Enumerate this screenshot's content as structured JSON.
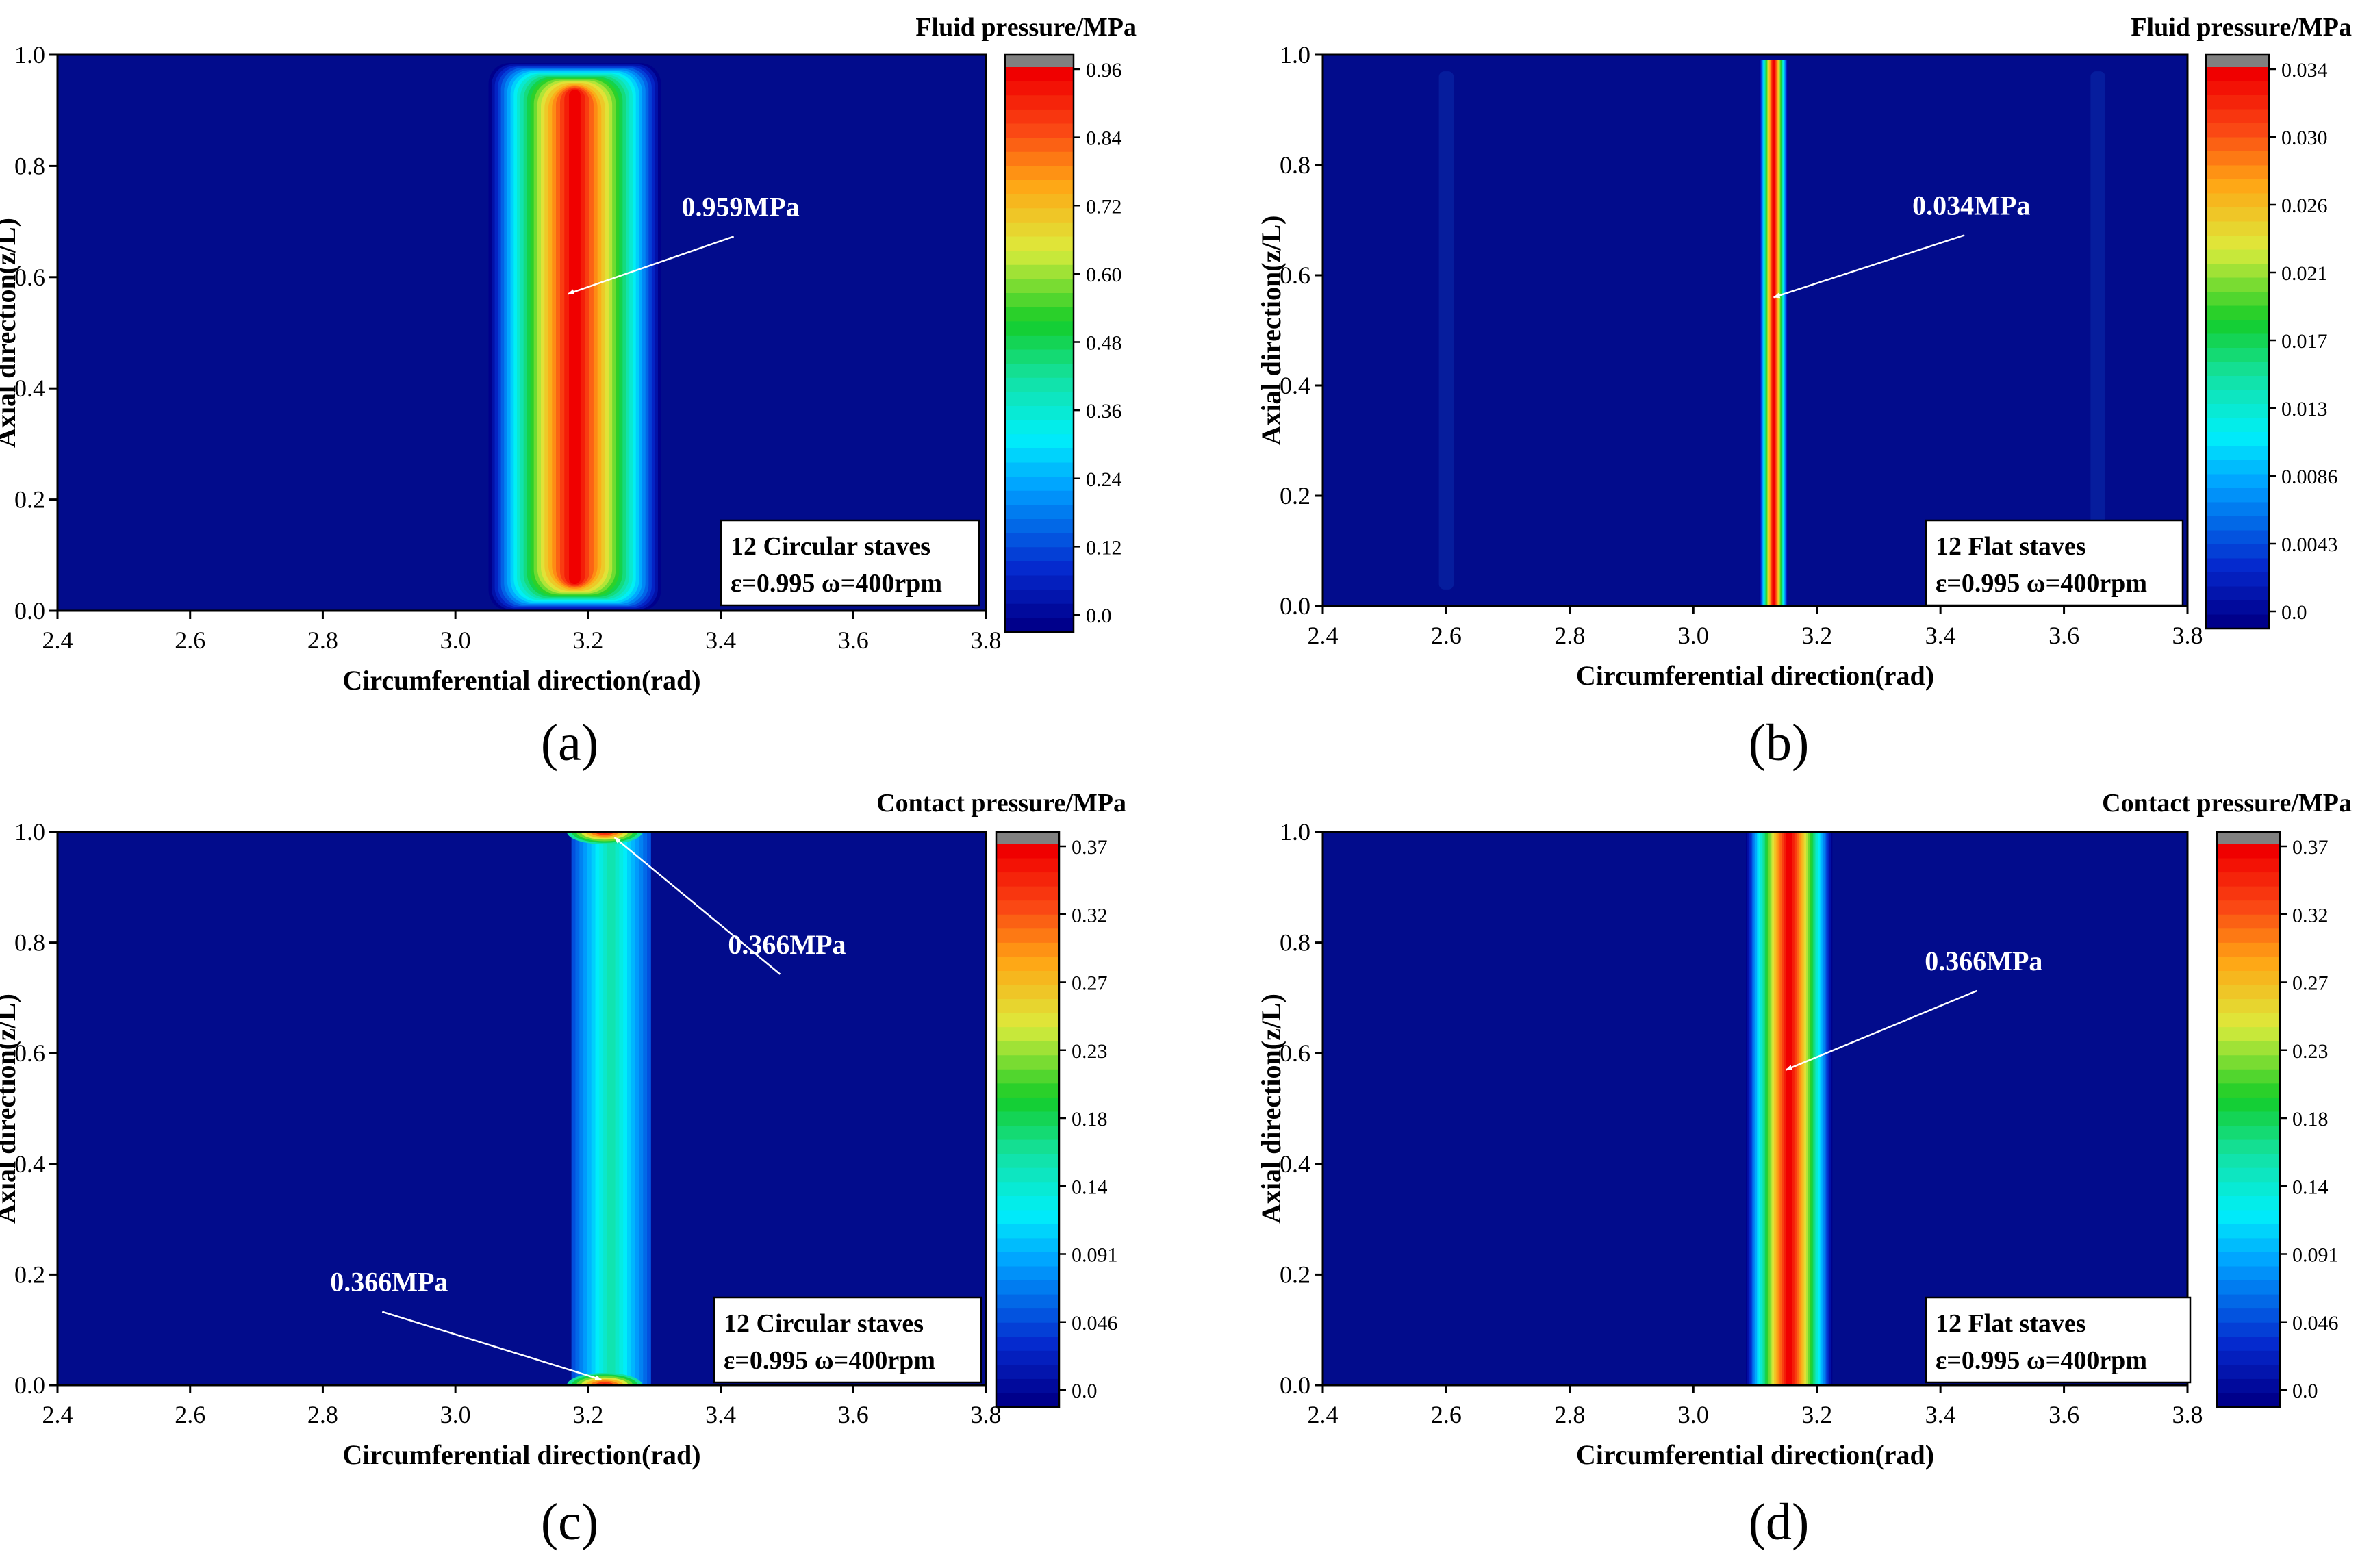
{
  "chart_data": [
    {
      "type": "heatmap",
      "panel_label": "(a)",
      "title": "Fluid pressure/MPa",
      "xlabel": "Circumferential direction(rad)",
      "ylabel": "Axial direction(z/L)",
      "xlim": [
        2.4,
        3.8
      ],
      "ylim": [
        0.0,
        1.0
      ],
      "xticks": [
        "2.4",
        "2.6",
        "2.8",
        "3.0",
        "3.2",
        "3.4",
        "3.6",
        "3.8"
      ],
      "yticks": [
        "0.0",
        "0.2",
        "0.4",
        "0.6",
        "0.8",
        "1.0"
      ],
      "colorbar": {
        "min": 0.0,
        "max": 0.96,
        "ticks": [
          "0.0",
          "0.12",
          "0.24",
          "0.36",
          "0.48",
          "0.60",
          "0.72",
          "0.84",
          "0.96"
        ]
      },
      "field": {
        "shape": "band",
        "center": 3.18,
        "half_width": 0.13,
        "z_start": 0.0,
        "z_end": 0.985,
        "round_ends": true,
        "peak": 0.959
      },
      "faint_bands": [],
      "legend": {
        "line1": "12 Circular staves",
        "line2": "ε=0.995 ω=400rpm"
      },
      "annotations": [
        {
          "text": "0.959MPa",
          "point_x": 3.17,
          "point_y": 0.57,
          "text_x": 3.43,
          "text_y": 0.71
        }
      ]
    },
    {
      "type": "heatmap",
      "panel_label": "(b)",
      "title": "Fluid pressure/MPa",
      "xlabel": "Circumferential direction(rad)",
      "ylabel": "Axial direction(z/L)",
      "xlim": [
        2.4,
        3.8
      ],
      "ylim": [
        0.0,
        1.0
      ],
      "xticks": [
        "2.4",
        "2.6",
        "2.8",
        "3.0",
        "3.2",
        "3.4",
        "3.6",
        "3.8"
      ],
      "yticks": [
        "0.0",
        "0.2",
        "0.4",
        "0.6",
        "0.8",
        "1.0"
      ],
      "colorbar": {
        "min": 0.0,
        "max": 0.034,
        "ticks": [
          "0.0",
          "0.0043",
          "0.0086",
          "0.013",
          "0.017",
          "0.021",
          "0.026",
          "0.030",
          "0.034"
        ]
      },
      "field": {
        "shape": "band",
        "center": 3.13,
        "half_width": 0.023,
        "z_start": 0.0,
        "z_end": 0.99,
        "round_ends": false,
        "peak": 0.034
      },
      "faint_bands": [
        {
          "center": 2.6,
          "half_width": 0.012
        },
        {
          "center": 3.655,
          "half_width": 0.012
        }
      ],
      "legend": {
        "line1": "12 Flat staves",
        "line2": "ε=0.995 ω=400rpm"
      },
      "annotations": [
        {
          "text": "0.034MPa",
          "point_x": 3.13,
          "point_y": 0.56,
          "text_x": 3.45,
          "text_y": 0.71
        }
      ]
    },
    {
      "type": "heatmap",
      "panel_label": "(c)",
      "title": "Contact pressure/MPa",
      "xlabel": "Circumferential direction(rad)",
      "ylabel": "Axial direction(z/L)",
      "xlim": [
        2.4,
        3.8
      ],
      "ylim": [
        0.0,
        1.0
      ],
      "xticks": [
        "2.4",
        "2.6",
        "2.8",
        "3.0",
        "3.2",
        "3.4",
        "3.6",
        "3.8"
      ],
      "yticks": [
        "0.0",
        "0.2",
        "0.4",
        "0.6",
        "0.8",
        "1.0"
      ],
      "colorbar": {
        "min": 0.0,
        "max": 0.37,
        "ticks": [
          "0.0",
          "0.046",
          "0.091",
          "0.14",
          "0.18",
          "0.23",
          "0.27",
          "0.32",
          "0.37"
        ]
      },
      "field": {
        "shape": "edge_band",
        "center": 3.235,
        "half_width": 0.06,
        "z_start": 0.0,
        "z_end": 1.0,
        "peak": 0.366
      },
      "faint_bands": [],
      "legend": {
        "line1": "12 Circular staves",
        "line2": "ε=0.995 ω=400rpm"
      },
      "annotations": [
        {
          "text": "0.366MPa",
          "point_x": 3.24,
          "point_y": 0.99,
          "text_x": 3.5,
          "text_y": 0.78
        },
        {
          "text": "0.366MPa",
          "point_x": 3.22,
          "point_y": 0.01,
          "text_x": 2.9,
          "text_y": 0.17
        }
      ]
    },
    {
      "type": "heatmap",
      "panel_label": "(d)",
      "title": "Contact pressure/MPa",
      "xlabel": "Circumferential direction(rad)",
      "ylabel": "Axial direction(z/L)",
      "xlim": [
        2.4,
        3.8
      ],
      "ylim": [
        0.0,
        1.0
      ],
      "xticks": [
        "2.4",
        "2.6",
        "2.8",
        "3.0",
        "3.2",
        "3.4",
        "3.6",
        "3.8"
      ],
      "yticks": [
        "0.0",
        "0.2",
        "0.4",
        "0.6",
        "0.8",
        "1.0"
      ],
      "colorbar": {
        "min": 0.0,
        "max": 0.37,
        "ticks": [
          "0.0",
          "0.046",
          "0.091",
          "0.14",
          "0.18",
          "0.23",
          "0.27",
          "0.32",
          "0.37"
        ]
      },
      "field": {
        "shape": "band",
        "center": 3.155,
        "half_width": 0.07,
        "z_start": 0.0,
        "z_end": 1.0,
        "round_ends": false,
        "peak": 0.366
      },
      "faint_bands": [],
      "legend": {
        "line1": "12 Flat staves",
        "line2": "ε=0.995 ω=400rpm"
      },
      "annotations": [
        {
          "text": "0.366MPa",
          "point_x": 3.15,
          "point_y": 0.57,
          "text_x": 3.47,
          "text_y": 0.75
        }
      ]
    }
  ]
}
